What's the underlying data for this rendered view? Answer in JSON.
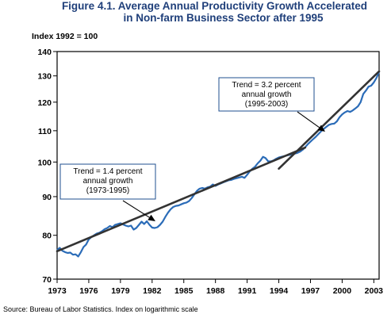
{
  "title": {
    "line1": "Figure 4.1.   Average Annual Productivity Growth Accelerated",
    "line2": "in Non-farm Business Sector after 1995"
  },
  "index_label": "Index 1992 = 100",
  "source": "Source: Bureau of Labor Statistics. Index on logarithmic scale",
  "chart_data": {
    "type": "line",
    "title": "Average Annual Productivity Growth Accelerated in Non-farm Business Sector after 1995",
    "ylabel": "Index 1992 = 100",
    "y_scale": "log",
    "ylim": [
      70,
      140
    ],
    "xlim": [
      1973,
      2003.5
    ],
    "y_ticks": [
      70,
      80,
      90,
      100,
      110,
      120,
      130,
      140
    ],
    "x_ticks": [
      1973,
      1976,
      1979,
      1982,
      1985,
      1988,
      1991,
      1994,
      1997,
      2000,
      2003
    ],
    "grid": false,
    "colors": {
      "series": "#2b6cb8",
      "trend": "#333333",
      "box_border": "#1f4f8f",
      "title": "#1f3f7a"
    },
    "series": [
      {
        "x": [
          1973.0,
          1973.25,
          1973.5,
          1973.75,
          1974.0,
          1974.25,
          1974.5,
          1974.75,
          1975.0,
          1975.25,
          1975.5,
          1975.75,
          1976.0,
          1976.25,
          1976.5,
          1976.75,
          1977.0,
          1977.25,
          1977.5,
          1977.75,
          1978.0,
          1978.25,
          1978.5,
          1978.75,
          1979.0,
          1979.25,
          1979.5,
          1979.75,
          1980.0,
          1980.25,
          1980.5,
          1980.75,
          1981.0,
          1981.25,
          1981.5,
          1981.75,
          1982.0,
          1982.25,
          1982.5,
          1982.75,
          1983.0,
          1983.25,
          1983.5,
          1983.75,
          1984.0,
          1984.25,
          1984.5,
          1984.75,
          1985.0,
          1985.25,
          1985.5,
          1985.75,
          1986.0,
          1986.25,
          1986.5,
          1986.75,
          1987.0,
          1987.25,
          1987.5,
          1987.75,
          1988.0,
          1988.25,
          1988.5,
          1988.75,
          1989.0,
          1989.25,
          1989.5,
          1989.75,
          1990.0,
          1990.25,
          1990.5,
          1990.75,
          1991.0,
          1991.25,
          1991.5,
          1991.75,
          1992.0,
          1992.25,
          1992.5,
          1992.75,
          1993.0,
          1993.25,
          1993.5,
          1993.75,
          1994.0,
          1994.25,
          1994.5,
          1994.75,
          1995.0,
          1995.25,
          1995.5,
          1995.75,
          1996.0,
          1996.25,
          1996.5,
          1996.75,
          1997.0,
          1997.25,
          1997.5,
          1997.75,
          1998.0,
          1998.25,
          1998.5,
          1998.75,
          1999.0,
          1999.25,
          1999.5,
          1999.75,
          2000.0,
          2000.25,
          2000.5,
          2000.75,
          2001.0,
          2001.25,
          2001.5,
          2001.75,
          2002.0,
          2002.25,
          2002.5,
          2002.75,
          2003.0,
          2003.25,
          2003.5
        ],
        "values": [
          76.5,
          77.0,
          76.3,
          76.0,
          75.8,
          75.9,
          75.4,
          75.5,
          75.0,
          76.0,
          77.2,
          77.8,
          79.0,
          79.6,
          80.0,
          80.4,
          80.6,
          81.0,
          81.5,
          81.8,
          82.3,
          82.0,
          82.6,
          82.8,
          83.0,
          82.7,
          82.4,
          82.2,
          82.4,
          81.4,
          81.8,
          82.6,
          83.4,
          82.8,
          83.5,
          82.6,
          81.9,
          81.8,
          82.0,
          82.6,
          83.4,
          84.6,
          85.7,
          86.6,
          87.2,
          87.5,
          87.6,
          87.9,
          88.2,
          88.4,
          88.8,
          89.6,
          90.6,
          91.6,
          92.2,
          92.4,
          92.2,
          92.6,
          92.8,
          93.4,
          93.0,
          93.4,
          93.7,
          94.0,
          94.3,
          94.6,
          94.7,
          95.0,
          95.2,
          95.4,
          95.6,
          95.3,
          96.2,
          97.2,
          98.0,
          98.6,
          99.6,
          100.4,
          101.6,
          101.2,
          100.2,
          100.2,
          100.5,
          101.0,
          101.4,
          101.6,
          101.8,
          102.0,
          102.2,
          102.4,
          102.6,
          102.8,
          103.2,
          103.8,
          104.6,
          105.6,
          106.4,
          107.2,
          108.0,
          108.9,
          109.8,
          110.6,
          111.3,
          112.0,
          112.3,
          112.4,
          113.2,
          114.6,
          115.6,
          116.3,
          116.8,
          116.5,
          117.0,
          117.7,
          118.5,
          120.0,
          123.0,
          124.3,
          125.8,
          126.2,
          127.4,
          129.2,
          131.5
        ]
      }
    ],
    "trend_lines": [
      {
        "x": [
          1973.0,
          1996.5
        ],
        "values": [
          76.2,
          104.5
        ],
        "callout": {
          "lines": [
            "Trend = 1.4 percent",
            "annual growth",
            "(1973-1995)"
          ]
        }
      },
      {
        "x": [
          1994.0,
          2003.5
        ],
        "values": [
          98.0,
          131.8
        ],
        "callout": {
          "lines": [
            "Trend = 3.2 percent",
            "annual growth",
            "(1995-2003)"
          ]
        }
      }
    ]
  }
}
